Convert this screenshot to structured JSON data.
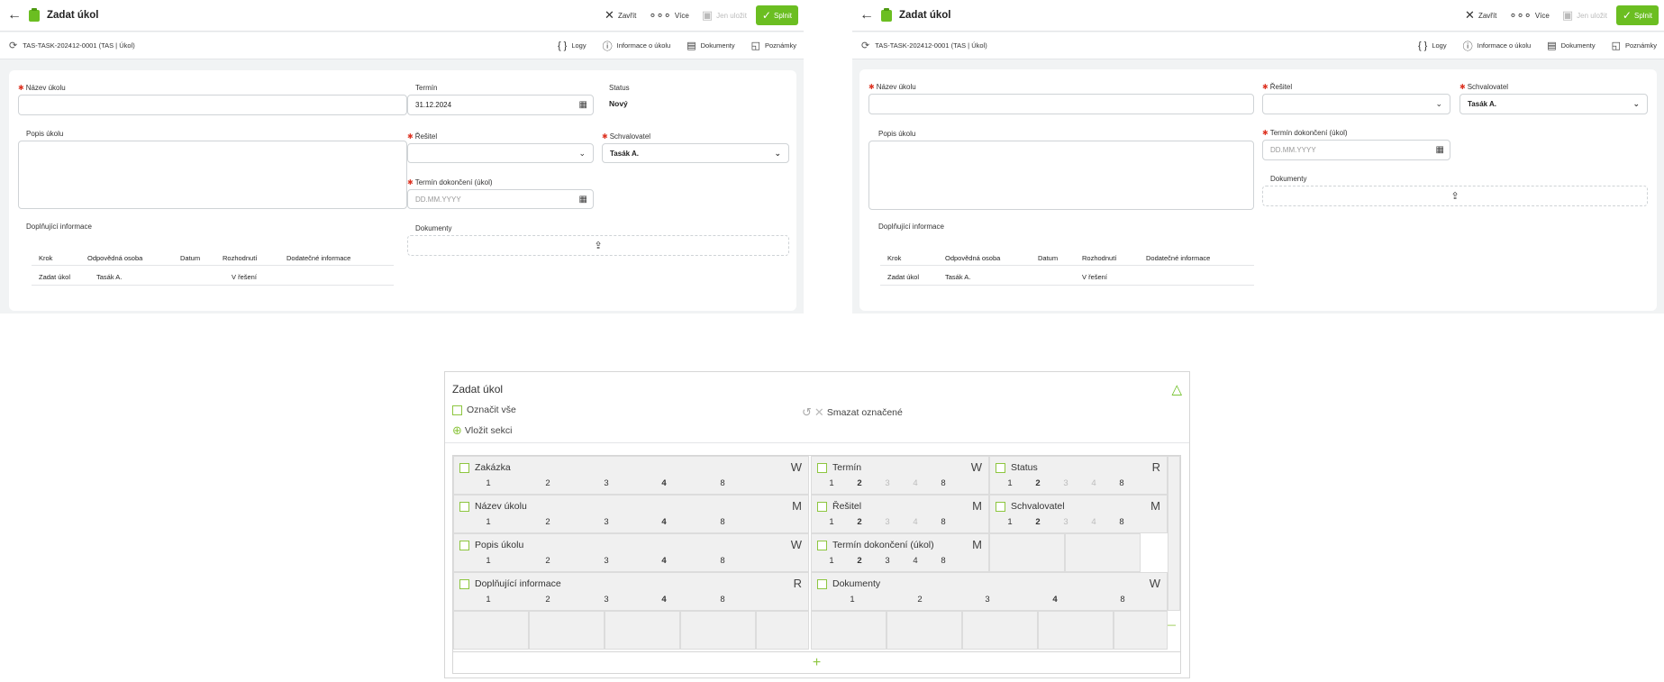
{
  "header": {
    "title": "Zadat úkol",
    "close_label": "Zavřít",
    "more_label": "Více",
    "save_label": "Jen uložit",
    "complete_label": "Splnit"
  },
  "subheader": {
    "ref": "TAS-TASK-202412-0001 (TAS | Úkol)",
    "logs_label": "Logy",
    "info_label": "Informace o úkolu",
    "docs_label": "Dokumenty",
    "notes_label": "Poznámky"
  },
  "form": {
    "name_label": "Název úkolu",
    "desc_label": "Popis úkolu",
    "deadline_label": "Termín",
    "deadline_value": "31.12.2024",
    "status_label": "Status",
    "status_value": "Nový",
    "solver_label": "Řešitel",
    "approver_label": "Schvalovatel",
    "approver_value": "Tasák A.",
    "completion_label": "Termín dokončení (úkol)",
    "completion_placeholder": "DD.MM.YYYY",
    "documents_label": "Dokumenty",
    "extra_label": "Doplňující informace"
  },
  "steps_table": {
    "headers": [
      "Krok",
      "Odpovědná osoba",
      "Datum",
      "Rozhodnutí",
      "Dodatečné informace"
    ],
    "rows": [
      [
        "Zadat úkol",
        "Tasák A.",
        "",
        "V řešení",
        ""
      ]
    ]
  },
  "editor": {
    "title": "Zadat úkol",
    "select_all": "Označit vše",
    "insert_section": "Vložit sekci",
    "delete_selected": "Smazat označené",
    "nums": [
      "1",
      "2",
      "3",
      "4",
      "8"
    ],
    "fields": [
      {
        "name": "Zakázka",
        "perm": "W"
      },
      {
        "name": "Termín",
        "perm": "W"
      },
      {
        "name": "Status",
        "perm": "R"
      },
      {
        "name": "Název úkolu",
        "perm": "M"
      },
      {
        "name": "Řešitel",
        "perm": "M"
      },
      {
        "name": "Schvalovatel",
        "perm": "M"
      },
      {
        "name": "Popis úkolu",
        "perm": "W"
      },
      {
        "name": "Termín dokončení (úkol)",
        "perm": "M"
      },
      {
        "name": "Doplňující informace",
        "perm": "R"
      },
      {
        "name": "Dokumenty",
        "perm": "W"
      }
    ]
  }
}
